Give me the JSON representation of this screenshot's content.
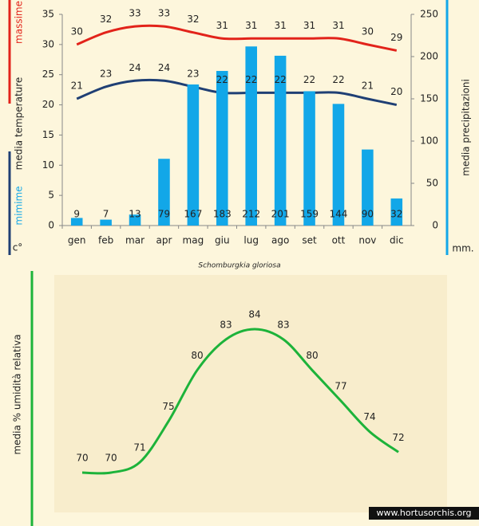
{
  "chart_data": [
    {
      "type": "combo",
      "categories": [
        "gen",
        "feb",
        "mar",
        "apr",
        "mag",
        "giu",
        "lug",
        "ago",
        "set",
        "ott",
        "nov",
        "dic"
      ],
      "series": [
        {
          "name": "massime",
          "type": "line",
          "color": "#e2231a",
          "values": [
            30,
            32,
            33,
            33,
            32,
            31,
            31,
            31,
            31,
            31,
            30,
            29
          ]
        },
        {
          "name": "mimime",
          "type": "line",
          "color": "#1f3f74",
          "values": [
            21,
            23,
            24,
            24,
            23,
            22,
            22,
            22,
            22,
            22,
            21,
            20
          ]
        },
        {
          "type": "bar",
          "axis": "y2",
          "color": "#12a7e8",
          "values": [
            9,
            7,
            13,
            79,
            167,
            183,
            212,
            201,
            159,
            144,
            90,
            32
          ]
        }
      ],
      "ylabel": "media  temperature",
      "yunit": "c°",
      "y2label": "media  precipitazioni",
      "y2unit": "mm.",
      "ylim": [
        0,
        35
      ],
      "yticks": [
        0,
        5,
        10,
        15,
        20,
        25,
        30,
        35
      ],
      "y2lim": [
        0,
        250
      ],
      "y2ticks": [
        0,
        50,
        100,
        150,
        200,
        250
      ],
      "caption": "Schomburgkia gloriosa"
    },
    {
      "type": "line",
      "ylabel": "media %  umidità relativa",
      "color": "#1db33a",
      "values": [
        70,
        70,
        71,
        75,
        80,
        83,
        84,
        83,
        80,
        77,
        74,
        72
      ]
    }
  ],
  "watermark": "www.hortusorchis.org"
}
